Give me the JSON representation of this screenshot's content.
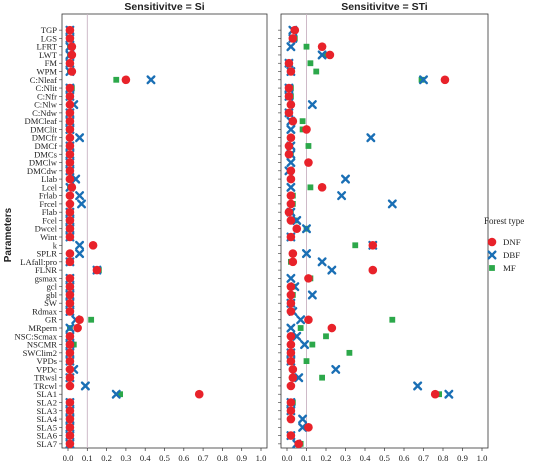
{
  "chart_data": {
    "type": "scatter",
    "y_axis_title": "Parameters",
    "x_ticks": [
      "0.0",
      "0.1",
      "0.2",
      "0.3",
      "0.4",
      "0.5",
      "0.6",
      "0.7",
      "0.8",
      "0.9",
      "1.0"
    ],
    "xlim": [
      0,
      1
    ],
    "reference_line_x": 0.1,
    "legend": {
      "title": "Forest type",
      "placement": "right"
    },
    "series": [
      {
        "name": "DNF",
        "color": "#e8222a",
        "marker": "circle"
      },
      {
        "name": "DBF",
        "color": "#1a6fb5",
        "marker": "x"
      },
      {
        "name": "MF",
        "color": "#2ca84a",
        "marker": "square"
      }
    ],
    "parameters": [
      "TGP",
      "LGS",
      "LFRT",
      "LWT",
      "FM",
      "WPM",
      "C:Nleaf",
      "C:Nlit",
      "C:Nfr",
      "C:Nlw",
      "C:Ndw",
      "DMCleaf",
      "DMClit",
      "DMCfr",
      "DMCf",
      "DMCs",
      "DMClw",
      "DMCdw",
      "Llab",
      "Lcel",
      "Frlab",
      "Frcel",
      "Flab",
      "Fcel",
      "Dwcel",
      "Wint",
      "k",
      "SPLR",
      "LAfall:pro",
      "FLNR",
      "gsmax",
      "gcl",
      "gbl",
      "SW",
      "Rdmax",
      "GR",
      "MRpern",
      "NSC:Scmax",
      "NSCMR",
      "SWClim2",
      "VPDs",
      "VPDc",
      "TRwsl",
      "TRcwl",
      "SLA1",
      "SLA2",
      "SLA3",
      "SLA4",
      "SLA5",
      "SLA6",
      "SLA7"
    ],
    "panels": [
      {
        "title": "Sensitivitve = Si",
        "DNF": [
          0.01,
          0.01,
          0.02,
          0.02,
          0.01,
          0.02,
          0.3,
          0.01,
          0.01,
          0.01,
          0.01,
          0.01,
          0.01,
          0.01,
          0.01,
          0.01,
          0.01,
          0.01,
          0.01,
          0.02,
          0.01,
          0.01,
          0.01,
          0.01,
          0.01,
          0.01,
          0.13,
          0.01,
          0.01,
          0.15,
          0.01,
          0.01,
          0.01,
          0.01,
          0.01,
          0.06,
          0.05,
          0.01,
          0.01,
          0.01,
          0.01,
          0.01,
          0.01,
          0.01,
          0.68,
          0.01,
          0.01,
          0.01,
          0.01,
          0.01,
          0.01
        ],
        "DBF": [
          0.01,
          0.01,
          0.01,
          0.01,
          0.01,
          0.01,
          0.43,
          0.01,
          0.01,
          0.03,
          0.01,
          0.01,
          0.01,
          0.06,
          0.01,
          0.01,
          0.01,
          0.01,
          0.04,
          0.01,
          0.06,
          0.07,
          0.01,
          0.01,
          0.01,
          0.01,
          0.06,
          0.06,
          0.01,
          0.15,
          0.01,
          0.01,
          0.01,
          0.01,
          0.01,
          0.04,
          0.01,
          0.01,
          0.01,
          0.01,
          0.01,
          0.03,
          0.01,
          0.09,
          0.25,
          0.01,
          0.01,
          0.01,
          0.01,
          0.01,
          0.01
        ],
        "MF": [
          0.01,
          0.01,
          0.01,
          0.01,
          0.01,
          0.01,
          0.25,
          0.02,
          0.01,
          0.01,
          0.01,
          0.01,
          0.01,
          0.01,
          0.01,
          0.01,
          0.01,
          0.01,
          0.01,
          0.01,
          0.01,
          0.01,
          0.01,
          0.01,
          0.01,
          0.01,
          0.13,
          0.01,
          0.01,
          0.16,
          0.01,
          0.01,
          0.01,
          0.01,
          0.01,
          0.12,
          0.01,
          0.01,
          0.03,
          0.01,
          0.01,
          0.01,
          0.01,
          0.01,
          0.27,
          0.01,
          0.01,
          0.01,
          0.01,
          0.01,
          0.01
        ]
      },
      {
        "title": "Sensitivitve = STi",
        "DNF": [
          0.04,
          0.03,
          0.18,
          0.22,
          0.01,
          0.02,
          0.81,
          0.01,
          0.01,
          0.02,
          0.01,
          0.03,
          0.1,
          0.02,
          0.01,
          0.01,
          0.11,
          0.02,
          0.02,
          0.18,
          0.02,
          0.02,
          0.01,
          0.02,
          0.05,
          0.02,
          0.44,
          0.03,
          0.03,
          0.44,
          0.11,
          0.02,
          0.02,
          0.02,
          0.02,
          0.11,
          0.23,
          0.02,
          0.02,
          0.02,
          0.02,
          0.03,
          0.03,
          0.02,
          0.76,
          0.02,
          0.02,
          0.02,
          0.11,
          0.02,
          0.06
        ],
        "DBF": [
          0.03,
          0.03,
          0.02,
          0.18,
          0.01,
          0.02,
          0.7,
          0.01,
          0.01,
          0.13,
          0.01,
          0.02,
          0.02,
          0.43,
          0.02,
          0.02,
          0.02,
          0.01,
          0.3,
          0.02,
          0.28,
          0.54,
          0.02,
          0.05,
          0.1,
          0.02,
          0.44,
          0.1,
          0.18,
          0.23,
          0.02,
          0.04,
          0.13,
          0.02,
          0.03,
          0.07,
          0.02,
          0.05,
          0.09,
          0.02,
          0.02,
          0.25,
          0.06,
          0.67,
          0.83,
          0.02,
          0.02,
          0.08,
          0.08,
          0.02,
          0.05
        ],
        "MF": [
          0.04,
          0.04,
          0.1,
          0.2,
          0.12,
          0.15,
          0.69,
          0.02,
          0.02,
          0.02,
          0.01,
          0.08,
          0.08,
          0.02,
          0.11,
          0.02,
          0.11,
          0.02,
          0.02,
          0.12,
          0.03,
          0.03,
          0.02,
          0.04,
          0.1,
          0.02,
          0.35,
          0.03,
          0.02,
          0.44,
          0.12,
          0.03,
          0.03,
          0.02,
          0.02,
          0.54,
          0.07,
          0.2,
          0.13,
          0.32,
          0.1,
          0.03,
          0.18,
          0.02,
          0.78,
          0.03,
          0.02,
          0.02,
          0.1,
          0.02,
          0.07
        ]
      }
    ]
  }
}
